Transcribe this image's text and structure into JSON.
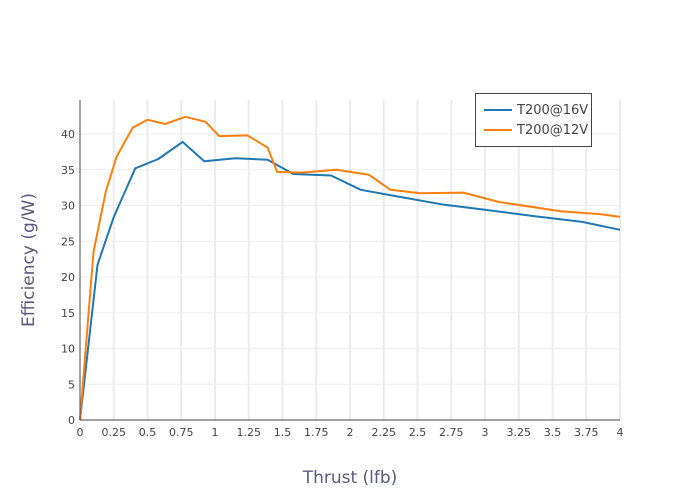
{
  "chart_data": {
    "type": "line",
    "title": "",
    "xlabel": "Thrust (lfb)",
    "ylabel": "Efficiency (g/W)",
    "xlim": [
      0,
      4
    ],
    "ylim": [
      0,
      45
    ],
    "x_ticks": [
      "0",
      "0.25",
      "0.5",
      "0.75",
      "1",
      "1.25",
      "1.5",
      "1.75",
      "2",
      "2.25",
      "2.5",
      "2.75",
      "3",
      "3.25",
      "3.5",
      "3.75",
      "4"
    ],
    "y_ticks": [
      "0",
      "5",
      "10",
      "15",
      "20",
      "25",
      "30",
      "35",
      "40"
    ],
    "grid": true,
    "legend_position": "top-right",
    "series": [
      {
        "name": "T200@16V",
        "color": "#1f77b4",
        "x": [
          0,
          0.13,
          0.25,
          0.41,
          0.58,
          0.76,
          0.92,
          1.15,
          1.39,
          1.58,
          1.86,
          2.08,
          2.37,
          2.7,
          3.0,
          3.37,
          3.72,
          4.0
        ],
        "y": [
          0,
          21.7,
          28.4,
          35.2,
          36.5,
          38.9,
          36.2,
          36.6,
          36.4,
          34.4,
          34.2,
          32.2,
          31.2,
          30.1,
          29.4,
          28.5,
          27.7,
          26.6
        ]
      },
      {
        "name": "T200@12V",
        "color": "#ff7f0e",
        "x": [
          0,
          0.1,
          0.19,
          0.27,
          0.39,
          0.5,
          0.63,
          0.78,
          0.93,
          1.03,
          1.24,
          1.39,
          1.46,
          1.64,
          1.9,
          2.14,
          2.3,
          2.52,
          2.84,
          3.1,
          3.56,
          3.85,
          4.0
        ],
        "y": [
          0,
          23.5,
          31.9,
          36.8,
          40.9,
          42.0,
          41.4,
          42.4,
          41.7,
          39.7,
          39.8,
          38.1,
          34.7,
          34.6,
          35.0,
          34.3,
          32.2,
          31.7,
          31.8,
          30.5,
          29.2,
          28.8,
          28.4
        ]
      }
    ]
  }
}
